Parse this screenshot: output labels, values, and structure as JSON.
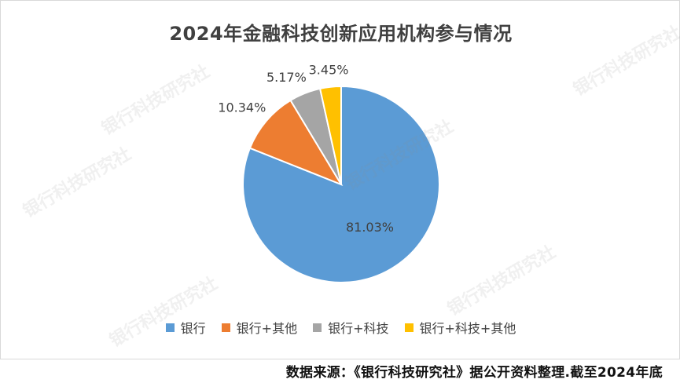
{
  "title": "2024年金融科技创新应用机构参与情况",
  "source": "数据来源：《银行科技研究社》据公开资料整理.截至2024年底",
  "watermark": "银行科技研究社",
  "chart_data": {
    "type": "pie",
    "title": "2024年金融科技创新应用机构参与情况",
    "categories": [
      "银行",
      "银行+其他",
      "银行+科技",
      "银行+科技+其他"
    ],
    "values": [
      81.03,
      10.34,
      5.17,
      3.45
    ],
    "labels": [
      "81.03%",
      "10.34%",
      "5.17%",
      "3.45%"
    ],
    "colors": [
      "#5b9bd5",
      "#ed7d31",
      "#a5a5a5",
      "#ffc000"
    ],
    "legend": "bottom"
  }
}
